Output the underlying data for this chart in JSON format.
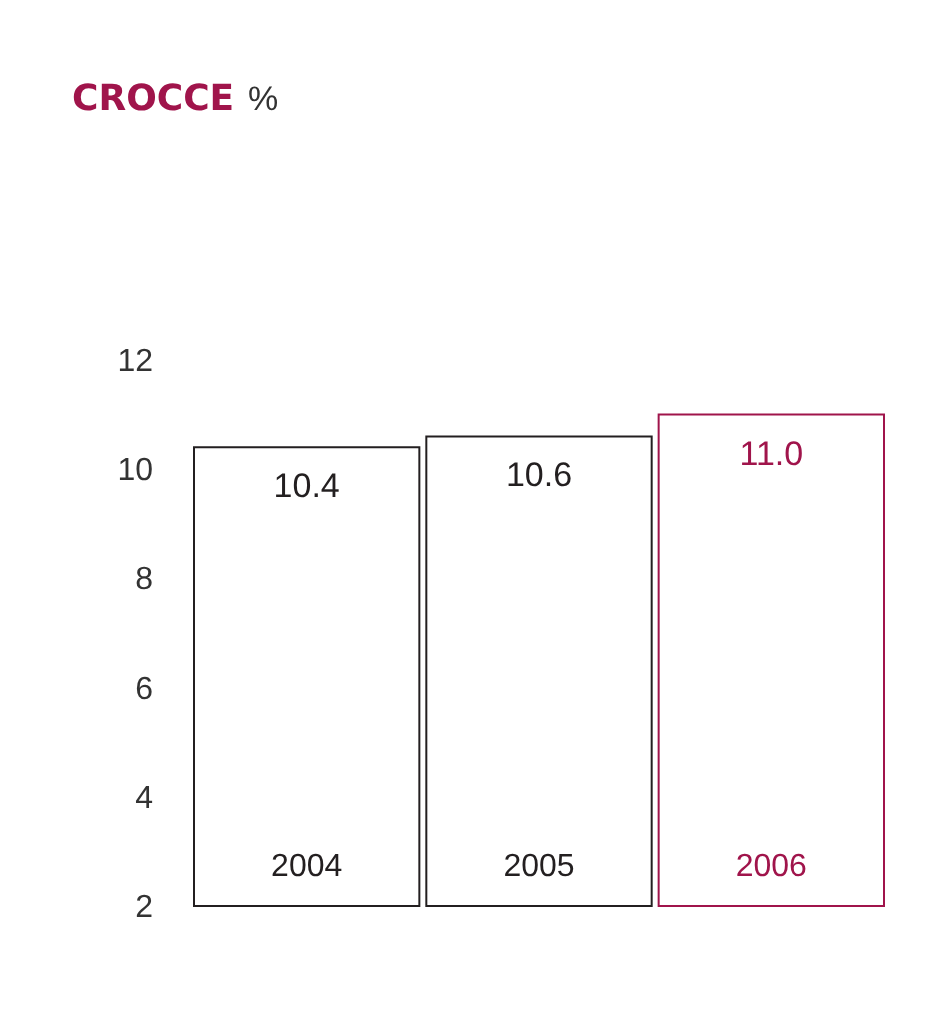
{
  "chart_data": {
    "type": "bar",
    "title": "CROCCE",
    "annotations": [
      "%"
    ],
    "categories": [
      "2004",
      "2005",
      "2006"
    ],
    "values": [
      10.4,
      10.6,
      11.0
    ],
    "value_labels": [
      "10.4",
      "10.6",
      "11.0"
    ],
    "colors": [
      "#231f20",
      "#231f20",
      "#a0144b"
    ],
    "ylim": [
      2,
      12
    ],
    "yticks": [
      2,
      4,
      6,
      8,
      10,
      12
    ],
    "grid": false
  }
}
